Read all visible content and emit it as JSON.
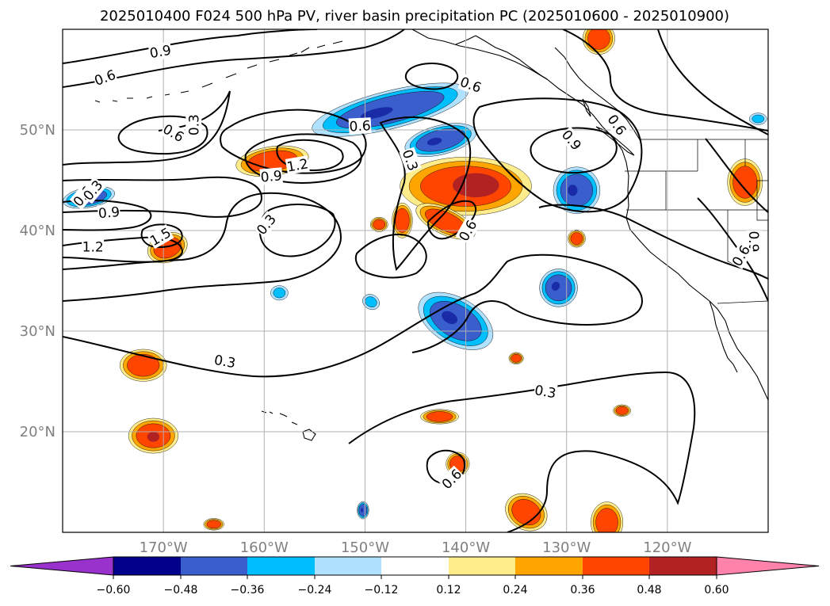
{
  "title": "2025010400 F024 500 hPa PV, river basin precipitation PC (2025010600 - 2025010900)",
  "map": {
    "lon_range": [
      -180,
      -110
    ],
    "lat_range": [
      10,
      60
    ],
    "lon_ticks": [
      {
        "lon": -170,
        "label": "170°W"
      },
      {
        "lon": -160,
        "label": "160°W"
      },
      {
        "lon": -150,
        "label": "150°W"
      },
      {
        "lon": -140,
        "label": "140°W"
      },
      {
        "lon": -130,
        "label": "130°W"
      },
      {
        "lon": -120,
        "label": "120°W"
      }
    ],
    "lat_ticks": [
      {
        "lat": 20,
        "label": "20°N"
      },
      {
        "lat": 30,
        "label": "30°N"
      },
      {
        "lat": 40,
        "label": "40°N"
      },
      {
        "lat": 50,
        "label": "50°N"
      }
    ],
    "grid": true,
    "contour_labels": [
      {
        "text": "0.9",
        "lon": -170.3,
        "lat": 57.8,
        "angle": -10
      },
      {
        "text": "0.6",
        "lon": -175.8,
        "lat": 55.2,
        "angle": -20
      },
      {
        "text": "0.6",
        "lon": -150.5,
        "lat": 50.4,
        "angle": -3
      },
      {
        "text": "0.6",
        "lon": -139.5,
        "lat": 54.5,
        "angle": 20
      },
      {
        "text": "0.6",
        "lon": -178.0,
        "lat": 43.4,
        "angle": -50
      },
      {
        "text": "0.3",
        "lon": -177.0,
        "lat": 44.0,
        "angle": -50
      },
      {
        "text": "0.6",
        "lon": -169.0,
        "lat": 49.7,
        "angle": 30
      },
      {
        "text": "0.3",
        "lon": -167.0,
        "lat": 50.5,
        "angle": -90
      },
      {
        "text": "1.2",
        "lon": -156.7,
        "lat": 46.5,
        "angle": -10
      },
      {
        "text": "0.9",
        "lon": -159.3,
        "lat": 45.4,
        "angle": -5
      },
      {
        "text": "0.9",
        "lon": -175.4,
        "lat": 41.8,
        "angle": -5
      },
      {
        "text": "1.2",
        "lon": -177.0,
        "lat": 38.4,
        "angle": 0
      },
      {
        "text": "1.5",
        "lon": -170.3,
        "lat": 39.4,
        "angle": -30
      },
      {
        "text": "0.3",
        "lon": -159.8,
        "lat": 40.6,
        "angle": -50
      },
      {
        "text": "0.3",
        "lon": -145.5,
        "lat": 47.0,
        "angle": 70
      },
      {
        "text": "0.9",
        "lon": -129.5,
        "lat": 49.0,
        "angle": 50
      },
      {
        "text": "0.6",
        "lon": -125.0,
        "lat": 50.5,
        "angle": 55
      },
      {
        "text": "0.6",
        "lon": -139.8,
        "lat": 40.0,
        "angle": -60
      },
      {
        "text": "0.9",
        "lon": -111.4,
        "lat": 38.9,
        "angle": 90
      },
      {
        "text": "0.6",
        "lon": -112.7,
        "lat": 37.5,
        "angle": -60
      },
      {
        "text": "0.3",
        "lon": -163.9,
        "lat": 27.0,
        "angle": 10
      },
      {
        "text": "0.3",
        "lon": -132.1,
        "lat": 24.0,
        "angle": 10
      },
      {
        "text": "0.6",
        "lon": -141.4,
        "lat": 15.3,
        "angle": -45
      }
    ]
  },
  "colorbar": {
    "colors": [
      "#9932cc",
      "#00008b",
      "#3a5fcd",
      "#00bfff",
      "#b0e2ff",
      "#ffffff",
      "#ffec8b",
      "#ffa500",
      "#ff4500",
      "#b22222",
      "#ff82ab"
    ],
    "boundaries": [
      -0.6,
      -0.48,
      -0.36,
      -0.24,
      -0.12,
      0.12,
      0.24,
      0.36,
      0.48,
      0.6
    ],
    "tick_labels": [
      "−0.60",
      "−0.48",
      "−0.36",
      "−0.24",
      "−0.12",
      "0.12",
      "0.24",
      "0.36",
      "0.48",
      "0.60"
    ]
  },
  "shaded_regions": [
    {
      "sign": "neg",
      "level": "-0.36",
      "lon": -147.5,
      "lat": 52.0,
      "rx": 5.5,
      "ry": 1.3,
      "rot": 14
    },
    {
      "sign": "neg",
      "level": "-0.36",
      "lon": -142.5,
      "lat": 49.0,
      "rx": 2.5,
      "ry": 1.0,
      "rot": 14
    },
    {
      "sign": "neg",
      "level": "-0.36",
      "lon": -177.4,
      "lat": 43.3,
      "rx": 1.8,
      "ry": 0.7,
      "rot": 10
    },
    {
      "sign": "neg",
      "level": "-0.36",
      "lon": -129.0,
      "lat": 44.0,
      "rx": 1.6,
      "ry": 1.6,
      "rot": 0
    },
    {
      "sign": "neg",
      "level": "-0.36",
      "lon": -130.8,
      "lat": 34.3,
      "rx": 1.3,
      "ry": 1.3,
      "rot": -30
    },
    {
      "sign": "neg",
      "level": "-0.36",
      "lon": -141.0,
      "lat": 31.0,
      "rx": 2.8,
      "ry": 1.6,
      "rot": -30
    },
    {
      "sign": "neg",
      "level": "-0.24",
      "lon": -158.5,
      "lat": 33.8,
      "rx": 0.6,
      "ry": 0.5,
      "rot": 0
    },
    {
      "sign": "neg",
      "level": "-0.24",
      "lon": -149.4,
      "lat": 32.9,
      "rx": 0.6,
      "ry": 0.5,
      "rot": -30
    },
    {
      "sign": "neg",
      "level": "-0.36",
      "lon": -150.2,
      "lat": 12.2,
      "rx": 0.4,
      "ry": 0.6,
      "rot": 0
    },
    {
      "sign": "neg",
      "level": "-0.24",
      "lon": -111.0,
      "lat": 51.1,
      "rx": 0.6,
      "ry": 0.4,
      "rot": 0
    },
    {
      "sign": "pos",
      "level": "0.36",
      "lon": -159.2,
      "lat": 46.9,
      "rx": 2.5,
      "ry": 1.0,
      "rot": 8
    },
    {
      "sign": "pos",
      "level": "0.36",
      "lon": -140.0,
      "lat": 44.4,
      "rx": 4.5,
      "ry": 2.0,
      "rot": 0
    },
    {
      "sign": "pos",
      "level": "0.36",
      "lon": -142.0,
      "lat": 40.9,
      "rx": 2.2,
      "ry": 0.9,
      "rot": -25
    },
    {
      "sign": "pos",
      "level": "0.36",
      "lon": -146.3,
      "lat": 41.0,
      "rx": 0.7,
      "ry": 1.2,
      "rot": 0
    },
    {
      "sign": "pos",
      "level": "0.36",
      "lon": -148.6,
      "lat": 40.6,
      "rx": 0.6,
      "ry": 0.5,
      "rot": 0
    },
    {
      "sign": "pos",
      "level": "0.36",
      "lon": -169.6,
      "lat": 38.3,
      "rx": 1.4,
      "ry": 1.0,
      "rot": 20
    },
    {
      "sign": "pos",
      "level": "0.36",
      "lon": -112.3,
      "lat": 44.8,
      "rx": 1.2,
      "ry": 1.6,
      "rot": 0
    },
    {
      "sign": "pos",
      "level": "0.36",
      "lon": -126.8,
      "lat": 59.1,
      "rx": 1.1,
      "ry": 1.1,
      "rot": 0
    },
    {
      "sign": "pos",
      "level": "0.36",
      "lon": -129.0,
      "lat": 39.2,
      "rx": 0.6,
      "ry": 0.6,
      "rot": 0
    },
    {
      "sign": "pos",
      "level": "0.36",
      "lon": -172.0,
      "lat": 26.6,
      "rx": 1.6,
      "ry": 1.1,
      "rot": 0
    },
    {
      "sign": "pos",
      "level": "0.36",
      "lon": -171.0,
      "lat": 19.6,
      "rx": 1.7,
      "ry": 1.2,
      "rot": 0
    },
    {
      "sign": "pos",
      "level": "0.36",
      "lon": -142.6,
      "lat": 21.5,
      "rx": 1.3,
      "ry": 0.5,
      "rot": 0
    },
    {
      "sign": "pos",
      "level": "0.36",
      "lon": -140.8,
      "lat": 16.8,
      "rx": 0.8,
      "ry": 0.8,
      "rot": 0
    },
    {
      "sign": "pos",
      "level": "0.36",
      "lon": -134.0,
      "lat": 12.0,
      "rx": 1.5,
      "ry": 1.2,
      "rot": -30
    },
    {
      "sign": "pos",
      "level": "0.36",
      "lon": -126.0,
      "lat": 11.0,
      "rx": 1.1,
      "ry": 1.4,
      "rot": 0
    },
    {
      "sign": "pos",
      "level": "0.36",
      "lon": -135.0,
      "lat": 27.3,
      "rx": 0.5,
      "ry": 0.4,
      "rot": 0
    },
    {
      "sign": "pos",
      "level": "0.36",
      "lon": -124.5,
      "lat": 22.1,
      "rx": 0.6,
      "ry": 0.4,
      "rot": 0
    },
    {
      "sign": "pos",
      "level": "0.36",
      "lon": -165.0,
      "lat": 10.8,
      "rx": 0.7,
      "ry": 0.4,
      "rot": 0
    },
    {
      "sign": "pos",
      "level": "0.48",
      "lon": -139.0,
      "lat": 44.5,
      "rx": 2.3,
      "ry": 1.2,
      "rot": 0
    },
    {
      "sign": "pos",
      "level": "0.48",
      "lon": -171.0,
      "lat": 19.5,
      "rx": 0.6,
      "ry": 0.5,
      "rot": 0
    }
  ]
}
